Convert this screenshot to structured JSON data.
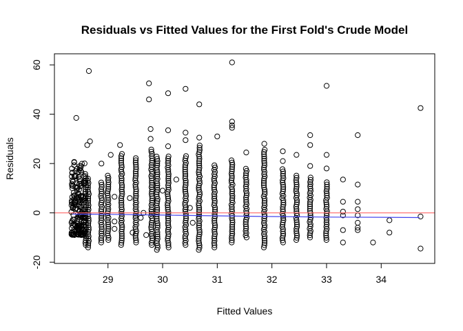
{
  "chart_data": {
    "type": "scatter",
    "title": "Residuals vs Fitted Values for the First Fold's Crude Model",
    "xlabel": "Fitted Values",
    "ylabel": "Residuals",
    "xlim": [
      28.02,
      34.98
    ],
    "ylim": [
      -20.5,
      64.5
    ],
    "xticks": [
      29,
      30,
      31,
      32,
      33,
      34
    ],
    "yticks": [
      -20,
      0,
      20,
      40,
      60
    ],
    "grid": false,
    "legend": "none",
    "reference_line": {
      "y": 0,
      "color": "#ff6666"
    },
    "smooth_line": {
      "color": "#4444ee",
      "x": [
        28.35,
        29.0,
        30.0,
        31.0,
        32.0,
        33.0,
        34.0,
        34.7
      ],
      "y": [
        -0.5,
        -0.6,
        -0.9,
        -1.2,
        -1.5,
        -1.7,
        -1.8,
        -1.9
      ]
    },
    "point_color": "#000000",
    "columns": [
      {
        "x": 28.59,
        "ymin": -13,
        "ymax": 16
      },
      {
        "x": 28.64,
        "ymin": -14,
        "ymax": 14
      },
      {
        "x": 28.88,
        "ymin": -12,
        "ymax": 13
      },
      {
        "x": 29.0,
        "ymin": -11,
        "ymax": 16
      },
      {
        "x": 29.25,
        "ymin": -13,
        "ymax": 24
      },
      {
        "x": 29.51,
        "ymin": -12,
        "ymax": 23
      },
      {
        "x": 29.8,
        "ymin": -13,
        "ymax": 26
      },
      {
        "x": 29.9,
        "ymin": -15,
        "ymax": 23
      },
      {
        "x": 30.1,
        "ymin": -14,
        "ymax": 23
      },
      {
        "x": 30.42,
        "ymin": -13,
        "ymax": 23
      },
      {
        "x": 30.67,
        "ymin": -15,
        "ymax": 28
      },
      {
        "x": 30.95,
        "ymin": -14,
        "ymax": 20
      },
      {
        "x": 31.27,
        "ymin": -12,
        "ymax": 22
      },
      {
        "x": 31.53,
        "ymin": -10,
        "ymax": 18
      },
      {
        "x": 31.86,
        "ymin": -14,
        "ymax": 26
      },
      {
        "x": 32.2,
        "ymin": -12,
        "ymax": 18
      },
      {
        "x": 32.45,
        "ymin": -11,
        "ymax": 16
      },
      {
        "x": 32.7,
        "ymin": -10,
        "ymax": 15
      },
      {
        "x": 33.0,
        "ymin": -11,
        "ymax": 13
      }
    ],
    "points": [
      {
        "x": 28.42,
        "y": 38.5
      },
      {
        "x": 28.65,
        "y": 57.5
      },
      {
        "x": 28.67,
        "y": 29.0
      },
      {
        "x": 28.62,
        "y": 27.5
      },
      {
        "x": 28.88,
        "y": 20.0
      },
      {
        "x": 29.05,
        "y": 23.5
      },
      {
        "x": 29.22,
        "y": 27.5
      },
      {
        "x": 29.75,
        "y": 52.5
      },
      {
        "x": 29.75,
        "y": 46.0
      },
      {
        "x": 29.78,
        "y": 34.0
      },
      {
        "x": 29.78,
        "y": 30.0
      },
      {
        "x": 30.1,
        "y": 48.5
      },
      {
        "x": 30.1,
        "y": 33.5
      },
      {
        "x": 30.1,
        "y": 27.0
      },
      {
        "x": 30.42,
        "y": 50.3
      },
      {
        "x": 30.42,
        "y": 32.5
      },
      {
        "x": 30.42,
        "y": 29.5
      },
      {
        "x": 30.67,
        "y": 44.0
      },
      {
        "x": 30.67,
        "y": 30.5
      },
      {
        "x": 31.0,
        "y": 31.0
      },
      {
        "x": 31.27,
        "y": 61.0
      },
      {
        "x": 31.27,
        "y": 37.0
      },
      {
        "x": 31.27,
        "y": 35.5
      },
      {
        "x": 31.27,
        "y": 34.5
      },
      {
        "x": 31.53,
        "y": 24.5
      },
      {
        "x": 31.86,
        "y": 28.0
      },
      {
        "x": 32.2,
        "y": 25.0
      },
      {
        "x": 32.2,
        "y": 21.0
      },
      {
        "x": 32.45,
        "y": 23.5
      },
      {
        "x": 32.7,
        "y": 31.5
      },
      {
        "x": 32.7,
        "y": 27.5
      },
      {
        "x": 32.7,
        "y": 19.0
      },
      {
        "x": 33.0,
        "y": 51.5
      },
      {
        "x": 33.0,
        "y": 23.5
      },
      {
        "x": 33.0,
        "y": 18.0
      },
      {
        "x": 33.3,
        "y": 13.5
      },
      {
        "x": 33.3,
        "y": 4.5
      },
      {
        "x": 33.3,
        "y": 0.5
      },
      {
        "x": 33.3,
        "y": -1.0
      },
      {
        "x": 33.3,
        "y": -7.0
      },
      {
        "x": 33.3,
        "y": -12.0
      },
      {
        "x": 33.57,
        "y": 31.5
      },
      {
        "x": 33.57,
        "y": 11.5
      },
      {
        "x": 33.57,
        "y": 4.5
      },
      {
        "x": 33.57,
        "y": 1.5
      },
      {
        "x": 33.57,
        "y": -1.0
      },
      {
        "x": 33.57,
        "y": -4.0
      },
      {
        "x": 33.57,
        "y": -6.0
      },
      {
        "x": 33.57,
        "y": -7.0
      },
      {
        "x": 33.85,
        "y": -12.0
      },
      {
        "x": 34.15,
        "y": -3.0
      },
      {
        "x": 34.15,
        "y": -8.0
      },
      {
        "x": 34.72,
        "y": 42.5
      },
      {
        "x": 34.72,
        "y": -1.5
      },
      {
        "x": 34.72,
        "y": -14.5
      },
      {
        "x": 29.4,
        "y": 6.0
      },
      {
        "x": 29.45,
        "y": -8.0
      },
      {
        "x": 29.6,
        "y": -2.0
      },
      {
        "x": 30.0,
        "y": 9.0
      },
      {
        "x": 30.25,
        "y": 13.5
      },
      {
        "x": 30.5,
        "y": 2.0
      },
      {
        "x": 30.55,
        "y": -4.0
      },
      {
        "x": 29.65,
        "y": 0.0
      },
      {
        "x": 29.7,
        "y": -9.0
      },
      {
        "x": 29.12,
        "y": 6.5
      },
      {
        "x": 29.12,
        "y": -3.5
      },
      {
        "x": 29.12,
        "y": -6.5
      }
    ],
    "cluster": {
      "xmin": 28.33,
      "xmax": 28.58,
      "ymin": -9,
      "ymax": 22
    }
  }
}
